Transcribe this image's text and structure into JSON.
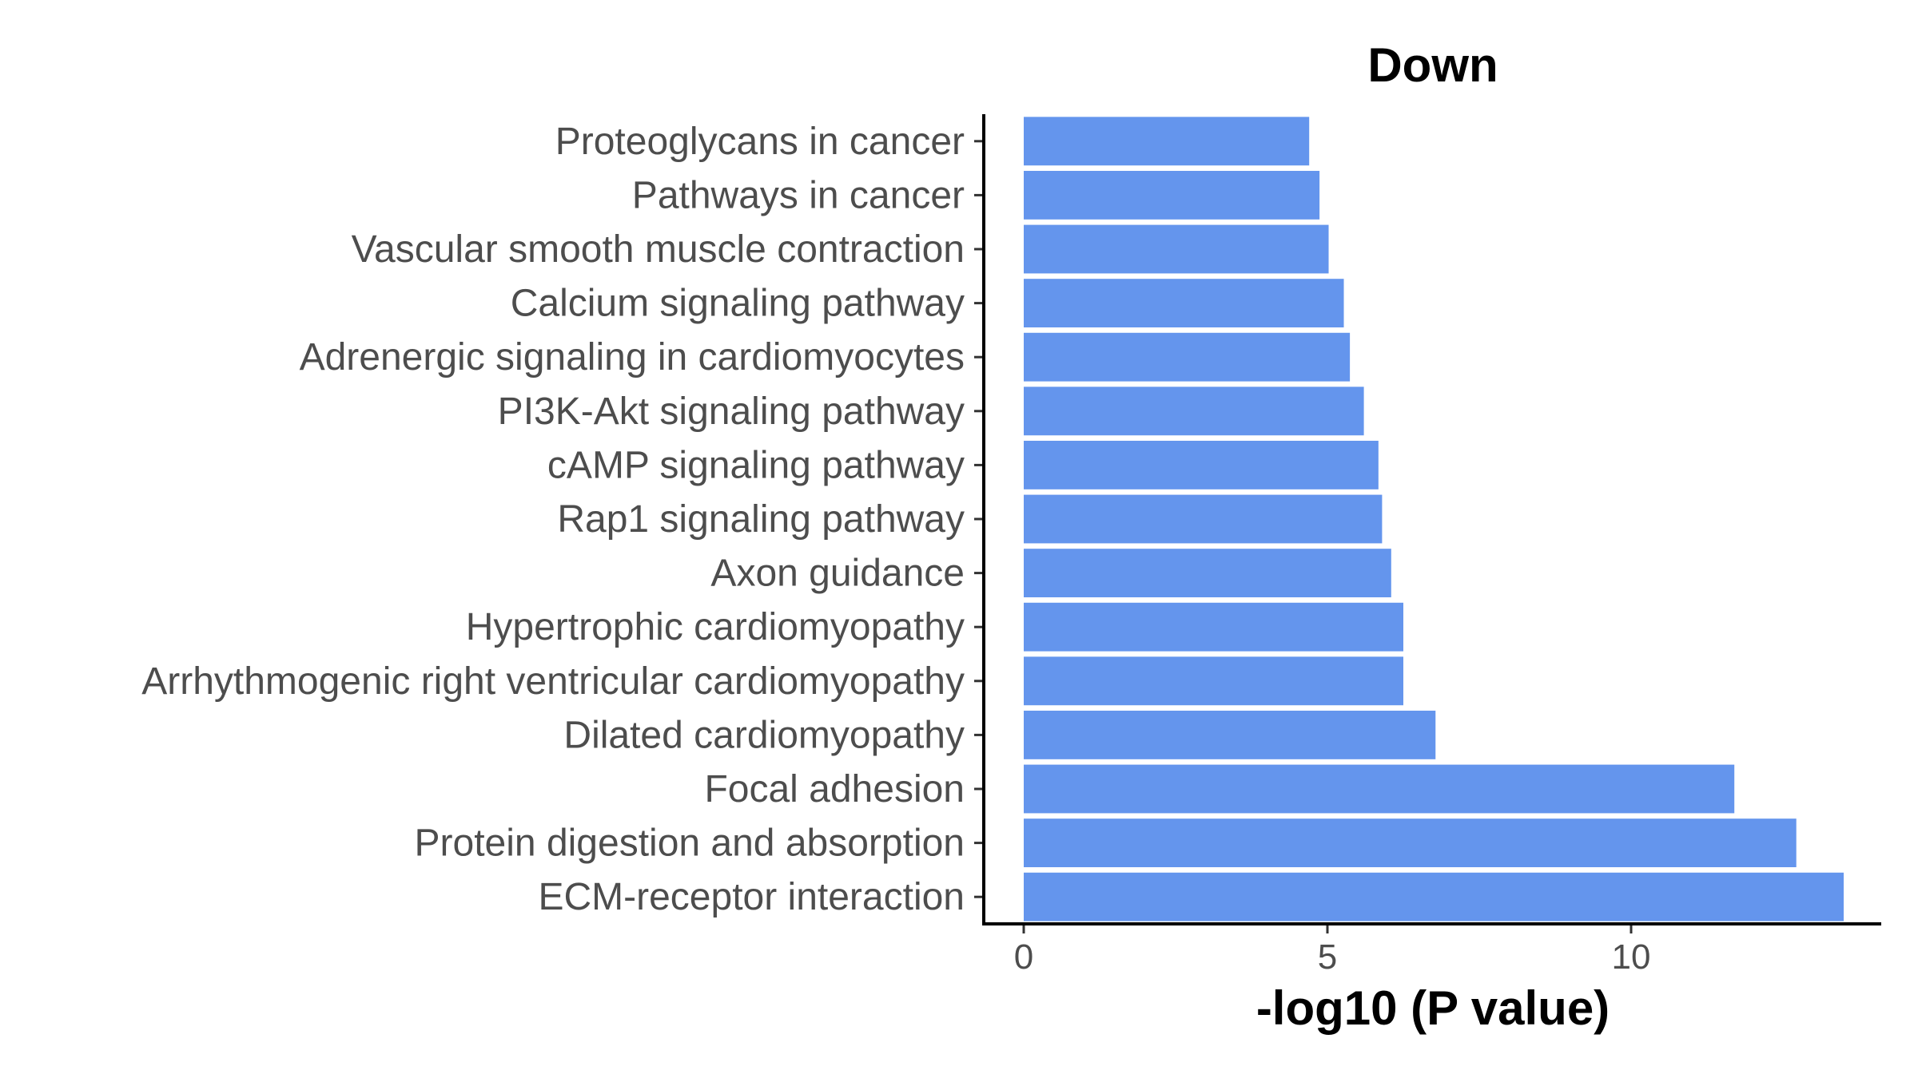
{
  "chart_data": {
    "type": "bar",
    "orientation": "horizontal",
    "title": "Down",
    "xlabel": "-log10 (P value)",
    "ylabel": "",
    "xlim": [
      0,
      14
    ],
    "xticks": [
      0,
      5,
      10
    ],
    "grid": false,
    "legend": "none",
    "bar_color": "#6495ED",
    "categories": [
      "Proteoglycans in cancer",
      "Pathways in cancer",
      "Vascular smooth muscle contraction",
      "Calcium signaling pathway",
      "Adrenergic signaling in cardiomyocytes",
      "PI3K-Akt signaling pathway",
      "cAMP signaling pathway",
      "Rap1 signaling pathway",
      "Axon guidance",
      "Hypertrophic cardiomyopathy",
      "Arrhythmogenic right ventricular cardiomyopathy",
      "Dilated cardiomyopathy",
      "Focal adhesion",
      "Protein digestion and absorption",
      "ECM-receptor interaction"
    ],
    "values": [
      4.7,
      4.87,
      5.02,
      5.27,
      5.37,
      5.6,
      5.84,
      5.9,
      6.05,
      6.25,
      6.25,
      6.78,
      11.7,
      12.72,
      13.5
    ]
  }
}
